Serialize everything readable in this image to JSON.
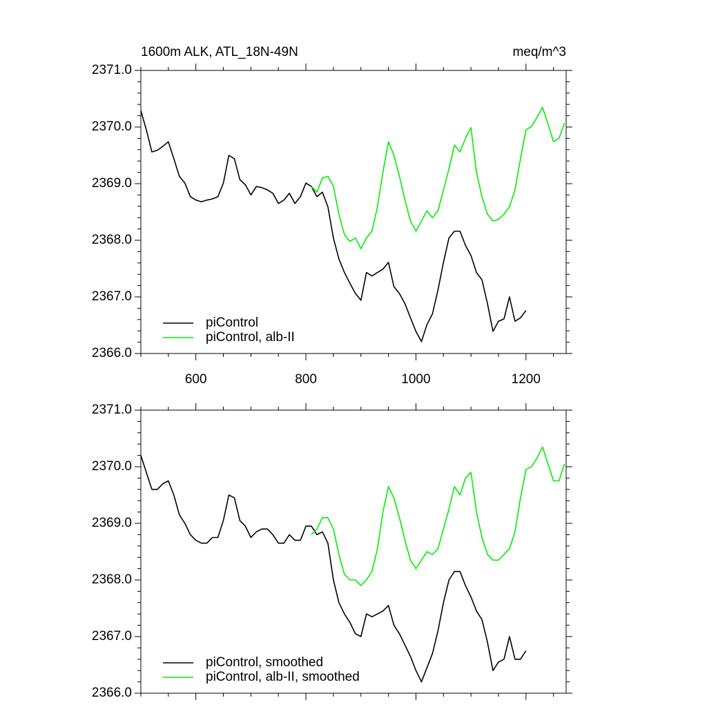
{
  "chart_data": [
    {
      "type": "line",
      "title": "1600m ALK, ATL_18N-49N",
      "units": "meq/m^3",
      "x": [
        500,
        510,
        520,
        530,
        540,
        550,
        560,
        570,
        580,
        590,
        600,
        610,
        620,
        630,
        640,
        650,
        660,
        670,
        680,
        690,
        700,
        710,
        720,
        730,
        740,
        750,
        760,
        770,
        780,
        790,
        800,
        810,
        820,
        830,
        840,
        850,
        860,
        870,
        880,
        890,
        900,
        910,
        920,
        930,
        940,
        950,
        960,
        970,
        980,
        990,
        1000,
        1010,
        1020,
        1030,
        1040,
        1050,
        1060,
        1070,
        1080,
        1090,
        1100,
        1110,
        1120,
        1130,
        1140,
        1150,
        1160,
        1170,
        1180,
        1190,
        1200,
        1210,
        1220,
        1230,
        1240,
        1250,
        1260,
        1270
      ],
      "xlim": [
        500,
        1273
      ],
      "xticks": [
        600,
        800,
        1000,
        1200
      ],
      "xtick_labels": true,
      "ylim": [
        2366,
        2371
      ],
      "yticks": [
        {
          "value": 2366,
          "label": "2366.0"
        },
        {
          "value": 2367,
          "label": "2367.0"
        },
        {
          "value": 2368,
          "label": "2368.0"
        },
        {
          "value": 2369,
          "label": "2369.0"
        },
        {
          "value": 2370,
          "label": "2370.0"
        },
        {
          "value": 2371,
          "label": "2371.0"
        }
      ],
      "legend": "lower left",
      "series": [
        {
          "name": "piControl",
          "color": "#000000",
          "values": [
            2370.29,
            2369.95,
            2369.56,
            2369.59,
            2369.66,
            2369.74,
            2369.44,
            2369.13,
            2369.01,
            2368.77,
            2368.71,
            2368.68,
            2368.71,
            2368.73,
            2368.77,
            2369.01,
            2369.5,
            2369.44,
            2369.07,
            2368.98,
            2368.8,
            2368.95,
            2368.93,
            2368.89,
            2368.83,
            2368.65,
            2368.71,
            2368.83,
            2368.65,
            2368.77,
            2369.01,
            2368.95,
            2368.77,
            2368.85,
            2368.59,
            2368.04,
            2367.67,
            2367.43,
            2367.24,
            2367.06,
            2366.94,
            2367.43,
            2367.37,
            2367.43,
            2367.49,
            2367.61,
            2367.18,
            2367.06,
            2366.88,
            2366.63,
            2366.39,
            2366.21,
            2366.51,
            2366.7,
            2367.12,
            2367.61,
            2368.04,
            2368.16,
            2368.16,
            2367.91,
            2367.73,
            2367.43,
            2367.3,
            2366.88,
            2366.39,
            2366.57,
            2366.61,
            2367.0,
            2366.57,
            2366.63,
            2366.76,
            null,
            null,
            null,
            null,
            null,
            null,
            null
          ]
        },
        {
          "name": "piControl, alb-II",
          "color": "#00ee00",
          "values": [
            null,
            null,
            null,
            null,
            null,
            null,
            null,
            null,
            null,
            null,
            null,
            null,
            null,
            null,
            null,
            null,
            null,
            null,
            null,
            null,
            null,
            null,
            null,
            null,
            null,
            null,
            null,
            null,
            null,
            null,
            null,
            2368.95,
            2368.85,
            2369.1,
            2369.13,
            2368.95,
            2368.46,
            2368.1,
            2367.98,
            2368.04,
            2367.85,
            2368.04,
            2368.16,
            2368.59,
            2369.2,
            2369.74,
            2369.5,
            2369.13,
            2368.71,
            2368.34,
            2368.16,
            2368.34,
            2368.52,
            2368.4,
            2368.52,
            2368.89,
            2369.26,
            2369.68,
            2369.56,
            2369.8,
            2369.99,
            2369.2,
            2368.77,
            2368.46,
            2368.34,
            2368.37,
            2368.46,
            2368.59,
            2368.89,
            2369.44,
            2369.95,
            2370.01,
            2370.17,
            2370.35,
            2370.05,
            2369.74,
            2369.8,
            2370.07
          ]
        }
      ]
    },
    {
      "type": "line",
      "x": [
        500,
        510,
        520,
        530,
        540,
        550,
        560,
        570,
        580,
        590,
        600,
        610,
        620,
        630,
        640,
        650,
        660,
        670,
        680,
        690,
        700,
        710,
        720,
        730,
        740,
        750,
        760,
        770,
        780,
        790,
        800,
        810,
        820,
        830,
        840,
        850,
        860,
        870,
        880,
        890,
        900,
        910,
        920,
        930,
        940,
        950,
        960,
        970,
        980,
        990,
        1000,
        1010,
        1020,
        1030,
        1040,
        1050,
        1060,
        1070,
        1080,
        1090,
        1100,
        1110,
        1120,
        1130,
        1140,
        1150,
        1160,
        1170,
        1180,
        1190,
        1200,
        1210,
        1220,
        1230,
        1240,
        1250,
        1260,
        1270
      ],
      "xlim": [
        500,
        1273
      ],
      "xticks": [
        600,
        800,
        1000,
        1200
      ],
      "xtick_labels": false,
      "ylim": [
        2366,
        2371
      ],
      "yticks": [
        {
          "value": 2366,
          "label": "2366.0"
        },
        {
          "value": 2367,
          "label": "2367.0"
        },
        {
          "value": 2368,
          "label": "2368.0"
        },
        {
          "value": 2369,
          "label": "2369.0"
        },
        {
          "value": 2370,
          "label": "2370.0"
        },
        {
          "value": 2371,
          "label": "2371.0"
        }
      ],
      "legend": "lower left",
      "series": [
        {
          "name": "piControl, smoothed",
          "color": "#000000",
          "values": [
            2370.2,
            2369.9,
            2369.6,
            2369.6,
            2369.7,
            2369.75,
            2369.5,
            2369.15,
            2369.0,
            2368.8,
            2368.7,
            2368.65,
            2368.65,
            2368.75,
            2368.75,
            2369.05,
            2369.5,
            2369.45,
            2369.05,
            2368.95,
            2368.75,
            2368.85,
            2368.9,
            2368.9,
            2368.8,
            2368.65,
            2368.65,
            2368.8,
            2368.7,
            2368.7,
            2368.95,
            2368.95,
            2368.8,
            2368.85,
            2368.65,
            2368.0,
            2367.6,
            2367.4,
            2367.25,
            2367.05,
            2367.0,
            2367.4,
            2367.35,
            2367.4,
            2367.45,
            2367.55,
            2367.2,
            2367.05,
            2366.85,
            2366.65,
            2366.4,
            2366.2,
            2366.45,
            2366.7,
            2367.1,
            2367.6,
            2368.0,
            2368.15,
            2368.15,
            2367.9,
            2367.7,
            2367.45,
            2367.3,
            2366.9,
            2366.4,
            2366.55,
            2366.6,
            2367.0,
            2366.6,
            2366.6,
            2366.75,
            null,
            null,
            null,
            null,
            null,
            null,
            null
          ]
        },
        {
          "name": "piControl, alb-II, smoothed",
          "color": "#00ee00",
          "values": [
            null,
            null,
            null,
            null,
            null,
            null,
            null,
            null,
            null,
            null,
            null,
            null,
            null,
            null,
            null,
            null,
            null,
            null,
            null,
            null,
            null,
            null,
            null,
            null,
            null,
            null,
            null,
            null,
            null,
            null,
            null,
            2368.8,
            2368.9,
            2369.1,
            2369.1,
            2368.9,
            2368.45,
            2368.1,
            2368.0,
            2368.0,
            2367.9,
            2368.0,
            2368.15,
            2368.55,
            2369.2,
            2369.65,
            2369.45,
            2369.1,
            2368.7,
            2368.35,
            2368.2,
            2368.35,
            2368.5,
            2368.45,
            2368.55,
            2368.9,
            2369.25,
            2369.65,
            2369.5,
            2369.8,
            2369.9,
            2369.2,
            2368.75,
            2368.45,
            2368.35,
            2368.35,
            2368.45,
            2368.55,
            2368.85,
            2369.45,
            2369.95,
            2370.0,
            2370.15,
            2370.35,
            2370.05,
            2369.75,
            2369.75,
            2370.05
          ]
        }
      ]
    }
  ]
}
